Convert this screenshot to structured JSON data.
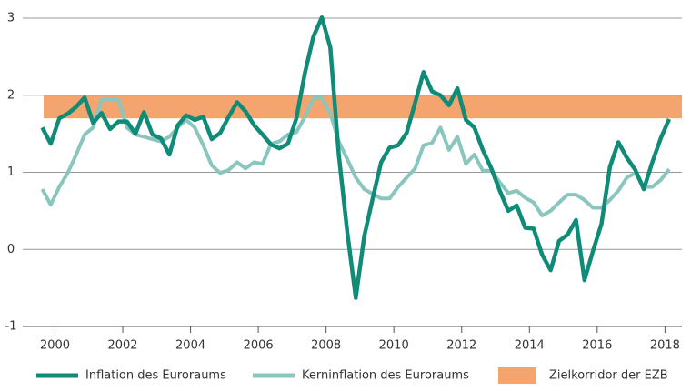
{
  "chart_data": {
    "type": "line",
    "x": [
      1999.625,
      1999.875,
      2000.125,
      2000.375,
      2000.625,
      2000.875,
      2001.125,
      2001.375,
      2001.625,
      2001.875,
      2002.125,
      2002.375,
      2002.625,
      2002.875,
      2003.125,
      2003.375,
      2003.625,
      2003.875,
      2004.125,
      2004.375,
      2004.625,
      2004.875,
      2005.125,
      2005.375,
      2005.625,
      2005.875,
      2006.125,
      2006.375,
      2006.625,
      2006.875,
      2007.125,
      2007.375,
      2007.625,
      2007.875,
      2008.125,
      2008.375,
      2008.625,
      2008.875,
      2009.125,
      2009.375,
      2009.625,
      2009.875,
      2010.125,
      2010.375,
      2010.625,
      2010.875,
      2011.125,
      2011.375,
      2011.625,
      2011.875,
      2012.125,
      2012.375,
      2012.625,
      2012.875,
      2013.125,
      2013.375,
      2013.625,
      2013.875,
      2014.125,
      2014.375,
      2014.625,
      2014.875,
      2015.125,
      2015.375,
      2015.625,
      2015.875,
      2016.125,
      2016.375,
      2016.625,
      2016.875,
      2017.125,
      2017.375,
      2017.625,
      2017.875,
      2018.125
    ],
    "series": [
      {
        "name": "Inflation des Euroraums",
        "color": "#0f8b78",
        "values": [
          1.58,
          1.37,
          1.7,
          1.76,
          1.85,
          1.97,
          1.64,
          1.77,
          1.56,
          1.66,
          1.66,
          1.5,
          1.78,
          1.49,
          1.44,
          1.23,
          1.61,
          1.74,
          1.68,
          1.72,
          1.43,
          1.51,
          1.72,
          1.91,
          1.79,
          1.61,
          1.49,
          1.36,
          1.31,
          1.37,
          1.7,
          2.29,
          2.76,
          3.01,
          2.62,
          1.23,
          0.22,
          -0.63,
          0.17,
          0.66,
          1.13,
          1.32,
          1.35,
          1.51,
          1.9,
          2.3,
          2.05,
          2.0,
          1.87,
          2.09,
          1.68,
          1.58,
          1.29,
          1.05,
          0.76,
          0.5,
          0.57,
          0.28,
          0.27,
          -0.07,
          -0.27,
          0.11,
          0.19,
          0.38,
          -0.4,
          -0.02,
          0.33,
          1.07,
          1.39,
          1.19,
          1.03,
          0.78,
          1.13,
          1.44,
          1.69
        ]
      },
      {
        "name": "Kerninflation des Euroraums",
        "color": "#88c6be",
        "values": [
          0.78,
          0.58,
          0.81,
          0.99,
          1.23,
          1.49,
          1.58,
          1.94,
          1.94,
          1.94,
          1.58,
          1.49,
          1.46,
          1.43,
          1.4,
          1.46,
          1.58,
          1.68,
          1.58,
          1.35,
          1.09,
          0.99,
          1.03,
          1.13,
          1.05,
          1.13,
          1.11,
          1.37,
          1.4,
          1.49,
          1.52,
          1.72,
          1.96,
          1.96,
          1.76,
          1.4,
          1.17,
          0.93,
          0.78,
          0.72,
          0.66,
          0.66,
          0.81,
          0.93,
          1.05,
          1.35,
          1.38,
          1.58,
          1.29,
          1.46,
          1.11,
          1.23,
          1.02,
          1.02,
          0.87,
          0.73,
          0.76,
          0.67,
          0.61,
          0.44,
          0.5,
          0.61,
          0.71,
          0.71,
          0.64,
          0.54,
          0.54,
          0.64,
          0.76,
          0.93,
          0.99,
          0.81,
          0.81,
          0.9,
          1.04
        ]
      }
    ],
    "band": {
      "name": "Zielkorridor der EZB",
      "range": [
        1.7,
        2.0
      ],
      "color": "#f4a46e"
    },
    "xlim": [
      1999.45,
      2018.5
    ],
    "xticks": [
      2000,
      2002,
      2004,
      2006,
      2008,
      2010,
      2012,
      2014,
      2016,
      2018
    ],
    "ylim": [
      -1,
      3
    ],
    "yticks": [
      -1,
      0,
      1,
      2,
      3
    ],
    "grid": true
  }
}
